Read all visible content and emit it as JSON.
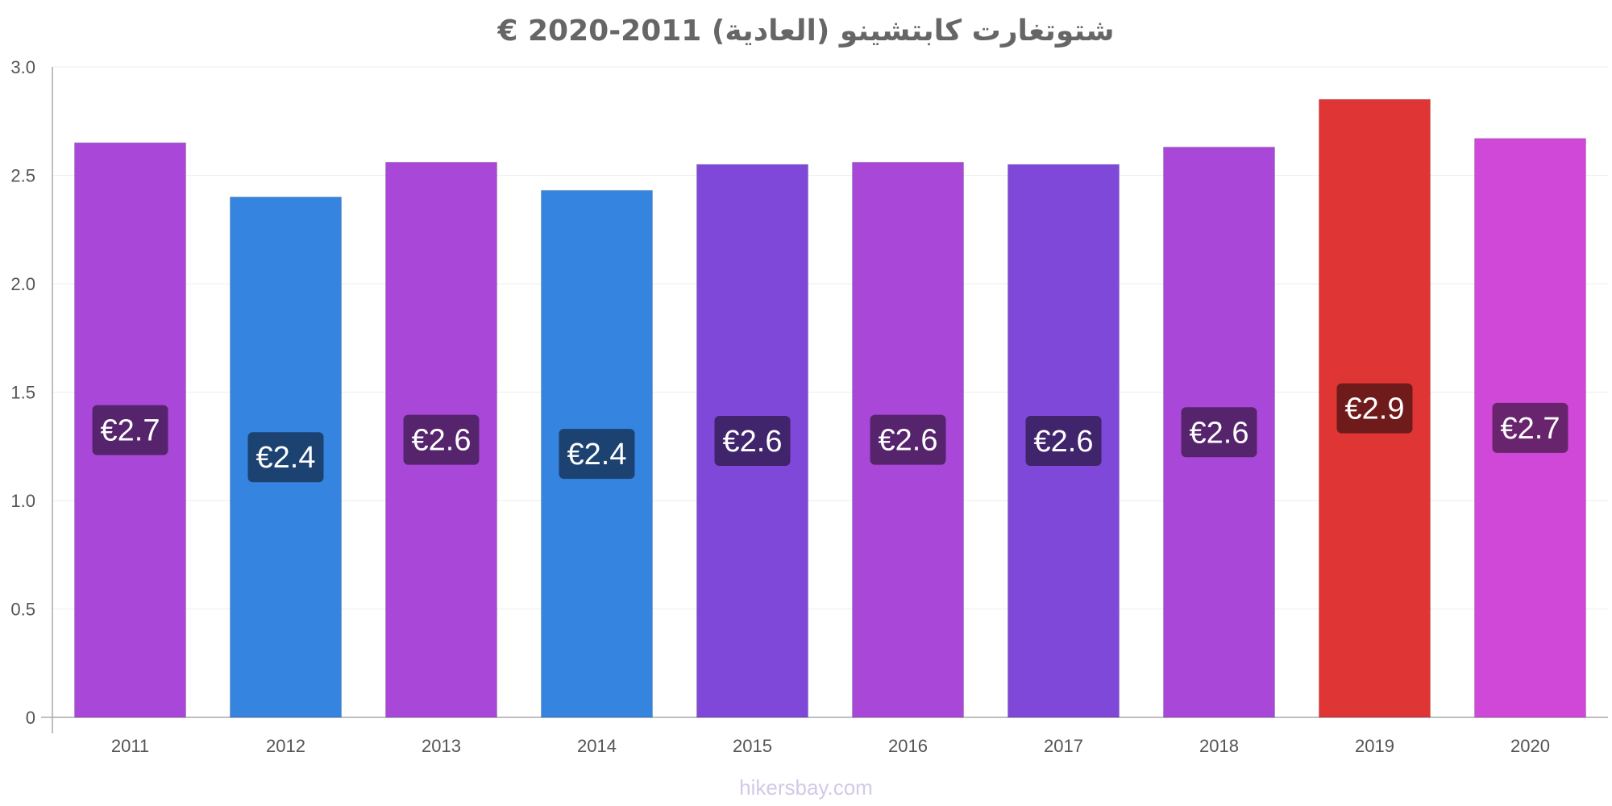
{
  "chart_data": {
    "type": "bar",
    "title": "شتوتغارت كابتشينو (العادية) 2011-2020 €",
    "categories": [
      "2011",
      "2012",
      "2013",
      "2014",
      "2015",
      "2016",
      "2017",
      "2018",
      "2019",
      "2020"
    ],
    "values": [
      2.65,
      2.4,
      2.56,
      2.43,
      2.55,
      2.56,
      2.55,
      2.63,
      2.85,
      2.67
    ],
    "value_labels": [
      "€2.7",
      "€2.4",
      "€2.6",
      "€2.4",
      "€2.6",
      "€2.6",
      "€2.6",
      "€2.6",
      "€2.9",
      "€2.7"
    ],
    "bar_colors": [
      "#a948d8",
      "#3584e0",
      "#a948d8",
      "#3584e0",
      "#7f48d8",
      "#a948d8",
      "#7f48d8",
      "#a948d8",
      "#e03535",
      "#d048d8"
    ],
    "label_bg_colors": [
      "#55246c",
      "#1b4270",
      "#55246c",
      "#1b4270",
      "#40246c",
      "#55246c",
      "#40246c",
      "#55246c",
      "#701b1b",
      "#68246c"
    ],
    "ylim": [
      0,
      3.0
    ],
    "yticks": [
      0,
      0.5,
      1.0,
      1.5,
      2.0,
      2.5,
      3.0
    ],
    "ytick_labels": [
      "0",
      "0.5",
      "1.0",
      "1.5",
      "2.0",
      "2.5",
      "3.0"
    ],
    "grid": true,
    "xlabel": "",
    "ylabel": ""
  },
  "watermark": "hikersbay.com"
}
